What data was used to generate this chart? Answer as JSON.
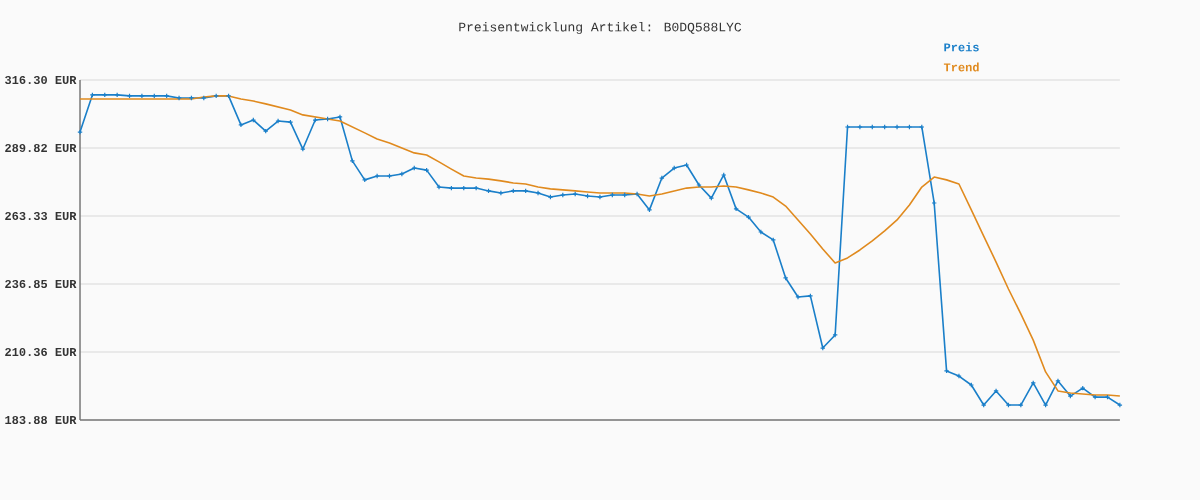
{
  "chart_data": {
    "type": "line",
    "title": "Preisentwicklung Artikel: B0DQ588LYC",
    "categories": [
      null,
      null,
      null,
      null,
      null,
      null,
      null,
      null,
      null,
      null,
      null,
      null,
      null,
      null,
      null,
      null,
      null,
      null,
      null,
      null,
      null,
      null,
      null,
      null,
      null,
      null,
      null,
      null,
      null,
      null,
      null,
      null,
      null,
      null,
      null,
      null,
      null,
      null,
      null,
      null,
      null,
      null,
      null,
      null,
      null,
      null,
      null,
      null,
      null,
      null,
      null,
      null,
      null,
      null,
      null,
      null,
      null,
      null,
      null,
      null,
      null,
      null,
      null,
      null,
      null,
      null,
      null,
      null,
      null,
      null,
      null,
      null,
      null,
      null,
      null,
      null,
      null,
      null,
      null,
      null,
      null,
      null,
      null,
      null,
      null
    ],
    "series": [
      {
        "name": "Preis",
        "color": "#1a7fc9",
        "marker": "cross",
        "values": [
          296.0,
          310.5,
          310.5,
          310.5,
          310.1,
          310.1,
          310.1,
          310.1,
          309.3,
          309.3,
          309.3,
          310.1,
          310.1,
          298.8,
          300.7,
          296.4,
          300.3,
          299.9,
          289.4,
          300.7,
          301.1,
          301.9,
          284.8,
          277.4,
          278.9,
          278.9,
          279.7,
          282.0,
          281.2,
          274.6,
          274.2,
          274.2,
          274.2,
          273.1,
          272.3,
          273.1,
          273.1,
          272.3,
          270.7,
          271.5,
          271.9,
          271.1,
          270.7,
          271.5,
          271.5,
          271.9,
          265.7,
          278.1,
          282.0,
          283.2,
          275.4,
          270.3,
          279.3,
          266.1,
          262.9,
          257.1,
          254.0,
          239.2,
          231.8,
          232.2,
          211.9,
          217.0,
          298.0,
          298.0,
          298.0,
          298.0,
          298.0,
          298.0,
          298.0,
          268.4,
          203.0,
          201.0,
          197.5,
          189.7,
          195.2,
          189.7,
          189.7,
          198.3,
          189.7,
          199.1,
          193.2,
          196.3,
          192.8,
          192.8,
          189.7
        ]
      },
      {
        "name": "Trend",
        "color": "#e08a1e",
        "marker": "none",
        "values": [
          308.9,
          308.9,
          308.9,
          308.9,
          308.9,
          308.9,
          308.9,
          308.9,
          308.9,
          308.9,
          309.7,
          310.1,
          310.1,
          308.9,
          308.1,
          307.0,
          305.8,
          304.6,
          302.7,
          301.9,
          301.1,
          300.3,
          298.0,
          295.7,
          293.3,
          291.8,
          289.8,
          287.9,
          287.1,
          284.4,
          281.6,
          278.9,
          278.1,
          277.7,
          277.0,
          276.2,
          275.8,
          274.6,
          273.9,
          273.5,
          273.1,
          272.7,
          272.3,
          272.3,
          272.3,
          271.9,
          271.1,
          271.9,
          273.1,
          274.2,
          274.6,
          274.6,
          275.0,
          274.6,
          273.5,
          272.3,
          270.7,
          267.2,
          261.8,
          256.3,
          250.5,
          245.0,
          247.0,
          250.1,
          253.6,
          257.5,
          261.8,
          267.6,
          274.6,
          278.5,
          277.4,
          275.8,
          265.7,
          255.5,
          245.4,
          234.9,
          225.2,
          215.0,
          202.6,
          195.2,
          194.4,
          194.0,
          193.6,
          193.6,
          193.2
        ]
      }
    ],
    "ylim": [
      183.88,
      316.3
    ],
    "yticks": [
      {
        "value": 183.88,
        "label": "183.88 EUR"
      },
      {
        "value": 210.36,
        "label": "210.36 EUR"
      },
      {
        "value": 236.85,
        "label": "236.85 EUR"
      },
      {
        "value": 263.33,
        "label": "263.33 EUR"
      },
      {
        "value": 289.82,
        "label": "289.82 EUR"
      },
      {
        "value": 316.3,
        "label": "316.30 EUR"
      }
    ],
    "grid": "y",
    "legend": "top right"
  }
}
